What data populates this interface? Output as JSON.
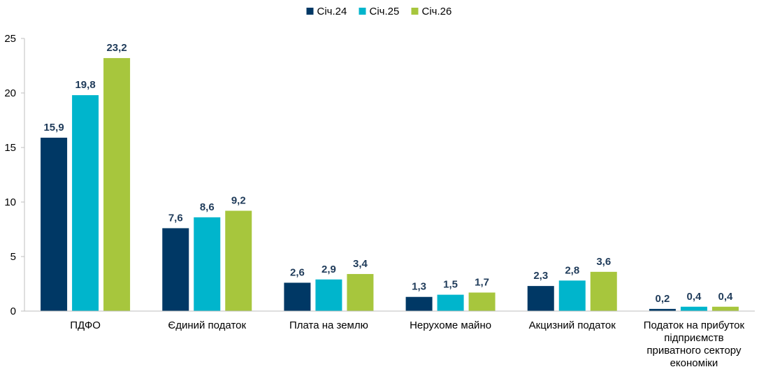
{
  "chart_data": {
    "type": "bar",
    "title": "",
    "xlabel": "",
    "ylabel": "",
    "ylim": [
      0,
      25
    ],
    "yticks": [
      0,
      5,
      10,
      15,
      20,
      25
    ],
    "grid": false,
    "legend_position": "top-center",
    "categories": [
      [
        "ПДФО"
      ],
      [
        "Єдиний податок"
      ],
      [
        "Плата на землю"
      ],
      [
        "Нерухоме майно"
      ],
      [
        "Акцизний податок"
      ],
      [
        "Податок на прибуток",
        "підприємств",
        "приватного сектору",
        "економіки"
      ]
    ],
    "series": [
      {
        "name": "Січ.24",
        "color": "#003865",
        "values": [
          15.9,
          7.6,
          2.6,
          1.3,
          2.3,
          0.2
        ],
        "labels": [
          "15,9",
          "7,6",
          "2,6",
          "1,3",
          "2,3",
          "0,2"
        ]
      },
      {
        "name": "Січ.25",
        "color": "#00b5cc",
        "values": [
          19.8,
          8.6,
          2.9,
          1.5,
          2.8,
          0.4
        ],
        "labels": [
          "19,8",
          "8,6",
          "2,9",
          "1,5",
          "2,8",
          "0,4"
        ]
      },
      {
        "name": "Січ.26",
        "color": "#a7c63d",
        "values": [
          23.2,
          9.2,
          3.4,
          1.7,
          3.6,
          0.4
        ],
        "labels": [
          "23,2",
          "9,2",
          "3,4",
          "1,7",
          "3,6",
          "0,4"
        ]
      }
    ]
  }
}
